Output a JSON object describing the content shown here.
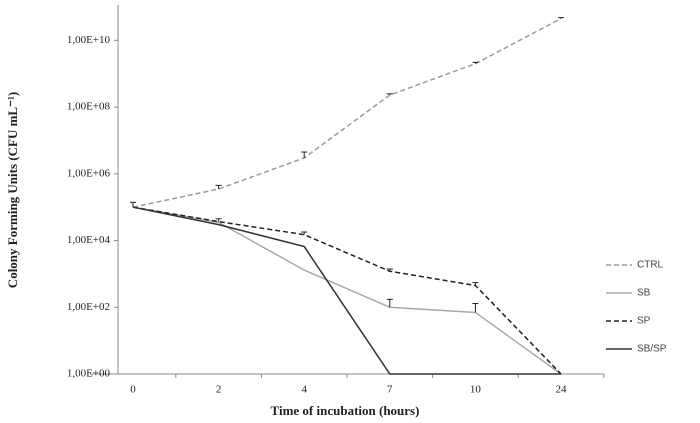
{
  "chart_data": {
    "type": "line",
    "x_label": "Time of incubation (hours)",
    "y_label": "Colony Forming Units (CFU mL⁻¹)",
    "categories": [
      "0",
      "2",
      "4",
      "7",
      "10",
      "24"
    ],
    "y_scale": "log",
    "ylim": [
      1,
      100000000000.0
    ],
    "yticks": [
      {
        "value": 1,
        "label": "1,00E+00"
      },
      {
        "value": 100,
        "label": "1,00E+02"
      },
      {
        "value": 10000,
        "label": "1,00E+04"
      },
      {
        "value": 1000000,
        "label": "1,00E+06"
      },
      {
        "value": 100000000,
        "label": "1,00E+08"
      },
      {
        "value": 10000000000,
        "label": "1,00E+10"
      }
    ],
    "grid": false,
    "legend": "right",
    "series": [
      {
        "name": "CTRL",
        "color": "#9a9a9a",
        "line_style": "dashed",
        "values": [
          100000,
          350000,
          3000000,
          230000000,
          2000000000,
          45000000000
        ],
        "errors": [
          40000,
          100000,
          1500000,
          20000000,
          200000000,
          3000000000
        ]
      },
      {
        "name": "SB",
        "color": "#a8a8a8",
        "line_style": "solid",
        "values": [
          100000,
          35000,
          1300,
          100,
          70,
          1
        ],
        "errors": [
          null,
          null,
          null,
          73,
          60,
          null
        ]
      },
      {
        "name": "SP",
        "color": "#222222",
        "line_style": "dashed",
        "values": [
          100000,
          37000,
          15000,
          1200,
          450,
          1
        ],
        "errors": [
          null,
          8000,
          3000,
          200,
          100,
          null
        ]
      },
      {
        "name": "SB/SP",
        "color": "#333333",
        "line_style": "solid",
        "values": [
          100000,
          30000,
          6600,
          1,
          1,
          1
        ]
      }
    ]
  }
}
